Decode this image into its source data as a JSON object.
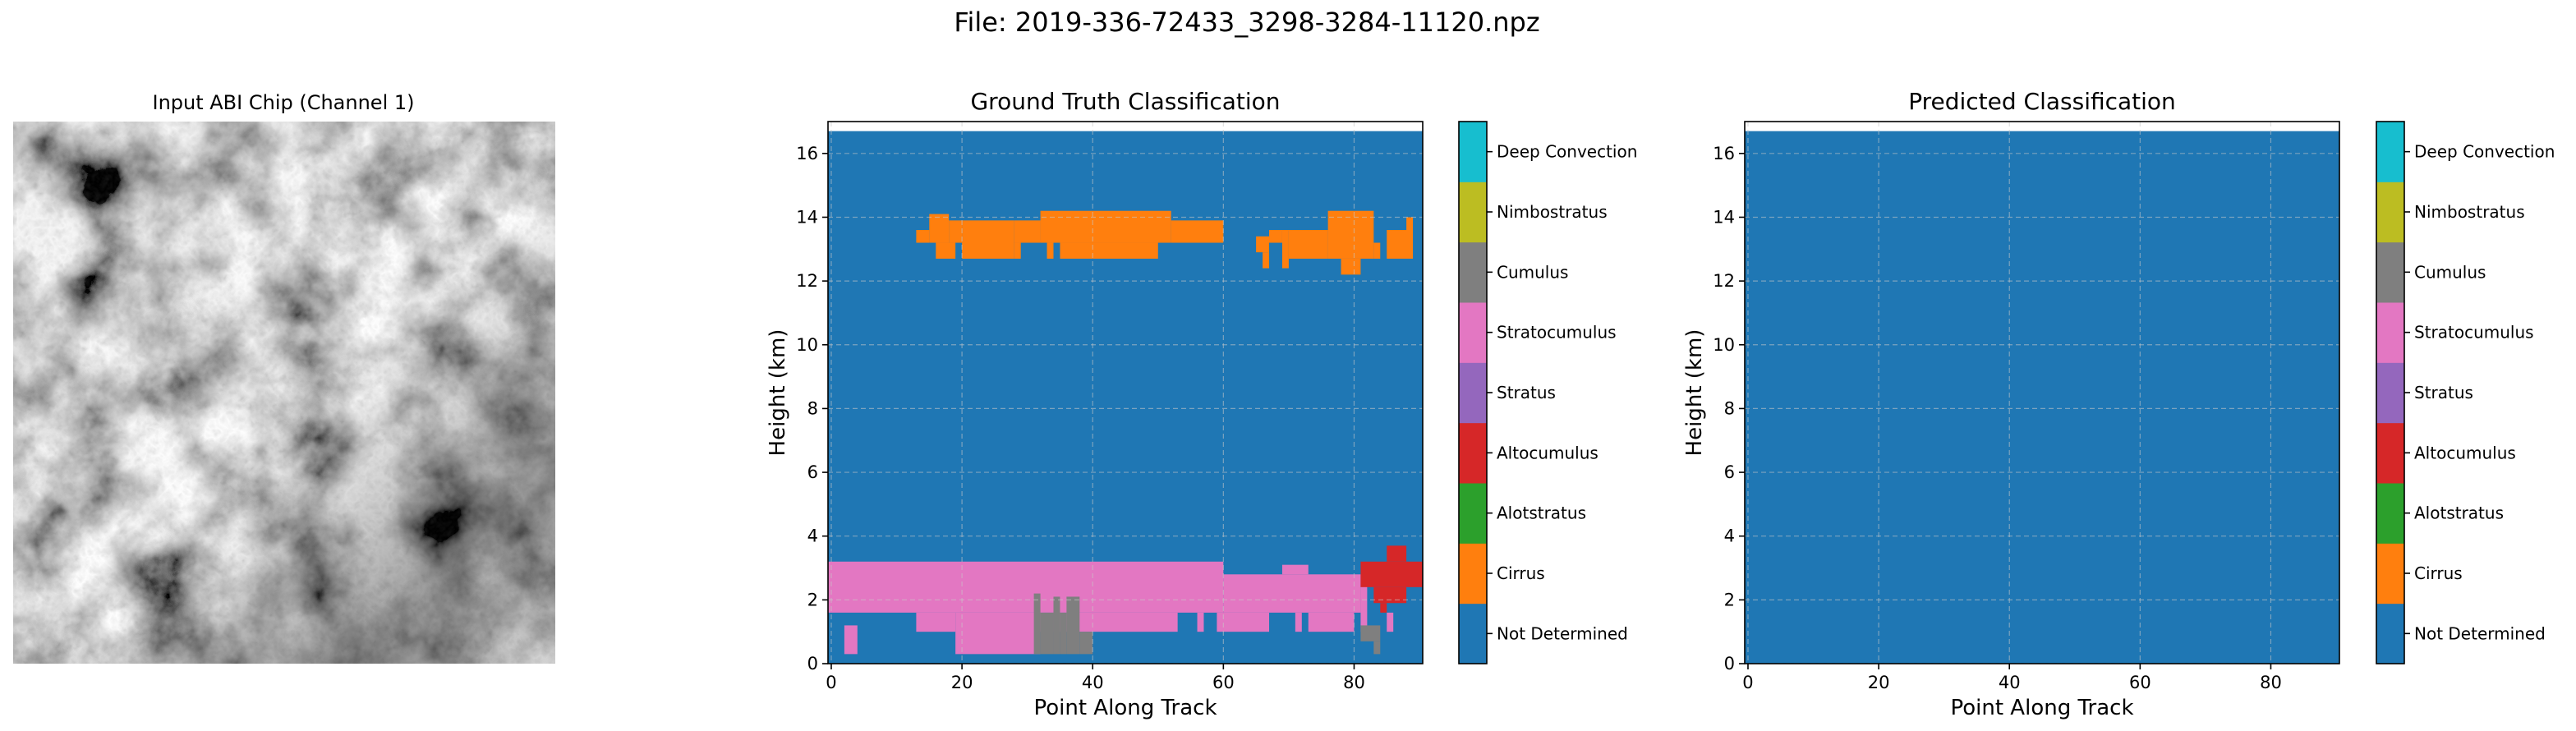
{
  "figure": {
    "suptitle": "File: 2019-336-72433_3298-3284-11120.npz"
  },
  "image_panel": {
    "title": "Input ABI Chip (Channel 1)"
  },
  "classes": [
    {
      "name": "Not Determined",
      "color": "#1f77b4"
    },
    {
      "name": "Cirrus",
      "color": "#ff7f0e"
    },
    {
      "name": "Alotstratus",
      "color": "#2ca02c"
    },
    {
      "name": "Altocumulus",
      "color": "#d62728"
    },
    {
      "name": "Stratus",
      "color": "#9467bd"
    },
    {
      "name": "Stratocumulus",
      "color": "#e377c2"
    },
    {
      "name": "Cumulus",
      "color": "#7f7f7f"
    },
    {
      "name": "Nimbostratus",
      "color": "#bcbd22"
    },
    {
      "name": "Deep Convection",
      "color": "#17becf"
    }
  ],
  "chart_data": [
    {
      "type": "heatmap",
      "title": "Ground Truth Classification",
      "xlabel": "Point Along Track",
      "ylabel": "Height (km)",
      "xlim": [
        -0.5,
        90.5
      ],
      "ylim": [
        0,
        17
      ],
      "xticks": [
        0,
        20,
        40,
        60,
        80
      ],
      "yticks": [
        0,
        2,
        4,
        6,
        8,
        10,
        12,
        14,
        16
      ],
      "grid": true,
      "background_class": "Not Determined",
      "data_top_km": 16.7,
      "regions": [
        {
          "cls": "Cirrus",
          "x0": 13,
          "x1": 15,
          "y0": 13.2,
          "y1": 13.6
        },
        {
          "cls": "Cirrus",
          "x0": 15,
          "x1": 18,
          "y0": 13.2,
          "y1": 14.1
        },
        {
          "cls": "Cirrus",
          "x0": 16,
          "x1": 19,
          "y0": 12.7,
          "y1": 13.2
        },
        {
          "cls": "Cirrus",
          "x0": 18,
          "x1": 20,
          "y0": 13.2,
          "y1": 13.9
        },
        {
          "cls": "Cirrus",
          "x0": 20,
          "x1": 28,
          "y0": 12.7,
          "y1": 13.9
        },
        {
          "cls": "Cirrus",
          "x0": 28,
          "x1": 32,
          "y0": 13.2,
          "y1": 13.9
        },
        {
          "cls": "Cirrus",
          "x0": 28,
          "x1": 29,
          "y0": 12.7,
          "y1": 13.2
        },
        {
          "cls": "Cirrus",
          "x0": 32,
          "x1": 52,
          "y0": 13.2,
          "y1": 14.2
        },
        {
          "cls": "Cirrus",
          "x0": 33,
          "x1": 34,
          "y0": 12.7,
          "y1": 13.2
        },
        {
          "cls": "Cirrus",
          "x0": 35,
          "x1": 50,
          "y0": 12.7,
          "y1": 13.2
        },
        {
          "cls": "Cirrus",
          "x0": 52,
          "x1": 60,
          "y0": 13.2,
          "y1": 13.9
        },
        {
          "cls": "Cirrus",
          "x0": 65,
          "x1": 67,
          "y0": 12.9,
          "y1": 13.4
        },
        {
          "cls": "Cirrus",
          "x0": 66,
          "x1": 67,
          "y0": 12.4,
          "y1": 12.9
        },
        {
          "cls": "Cirrus",
          "x0": 67,
          "x1": 69,
          "y0": 13.2,
          "y1": 13.6
        },
        {
          "cls": "Cirrus",
          "x0": 69,
          "x1": 70,
          "y0": 12.4,
          "y1": 13.6
        },
        {
          "cls": "Cirrus",
          "x0": 70,
          "x1": 76,
          "y0": 12.7,
          "y1": 13.6
        },
        {
          "cls": "Cirrus",
          "x0": 76,
          "x1": 83,
          "y0": 12.7,
          "y1": 14.2
        },
        {
          "cls": "Cirrus",
          "x0": 78,
          "x1": 81,
          "y0": 12.2,
          "y1": 12.7
        },
        {
          "cls": "Cirrus",
          "x0": 83,
          "x1": 84,
          "y0": 12.7,
          "y1": 13.2
        },
        {
          "cls": "Cirrus",
          "x0": 85,
          "x1": 89,
          "y0": 12.7,
          "y1": 13.6
        },
        {
          "cls": "Cirrus",
          "x0": 88,
          "x1": 89,
          "y0": 13.6,
          "y1": 14.0
        },
        {
          "cls": "Stratocumulus",
          "x0": -0.5,
          "x1": 60,
          "y0": 1.6,
          "y1": 3.2
        },
        {
          "cls": "Stratocumulus",
          "x0": 60,
          "x1": 81,
          "y0": 1.6,
          "y1": 2.8
        },
        {
          "cls": "Stratocumulus",
          "x0": 69,
          "x1": 73,
          "y0": 2.8,
          "y1": 3.1
        },
        {
          "cls": "Stratocumulus",
          "x0": 13,
          "x1": 19,
          "y0": 1.0,
          "y1": 1.6
        },
        {
          "cls": "Stratocumulus",
          "x0": 19,
          "x1": 32,
          "y0": 0.3,
          "y1": 1.6
        },
        {
          "cls": "Stratocumulus",
          "x0": 32,
          "x1": 53,
          "y0": 1.0,
          "y1": 1.6
        },
        {
          "cls": "Stratocumulus",
          "x0": 56,
          "x1": 57,
          "y0": 1.0,
          "y1": 1.6
        },
        {
          "cls": "Stratocumulus",
          "x0": 59,
          "x1": 67,
          "y0": 1.0,
          "y1": 1.6
        },
        {
          "cls": "Stratocumulus",
          "x0": 71,
          "x1": 72,
          "y0": 1.0,
          "y1": 1.6
        },
        {
          "cls": "Stratocumulus",
          "x0": 73,
          "x1": 80,
          "y0": 1.0,
          "y1": 1.6
        },
        {
          "cls": "Stratocumulus",
          "x0": 2,
          "x1": 4,
          "y0": 0.3,
          "y1": 1.2
        },
        {
          "cls": "Stratocumulus",
          "x0": 81,
          "x1": 82,
          "y0": 1.0,
          "y1": 2.8
        },
        {
          "cls": "Stratocumulus",
          "x0": 85,
          "x1": 86,
          "y0": 1.0,
          "y1": 1.6
        },
        {
          "cls": "Cumulus",
          "x0": 31,
          "x1": 32,
          "y0": 0.3,
          "y1": 2.2
        },
        {
          "cls": "Cumulus",
          "x0": 32,
          "x1": 34,
          "y0": 0.3,
          "y1": 1.6
        },
        {
          "cls": "Cumulus",
          "x0": 34,
          "x1": 35,
          "y0": 0.3,
          "y1": 2.1
        },
        {
          "cls": "Cumulus",
          "x0": 35,
          "x1": 36,
          "y0": 0.3,
          "y1": 1.6
        },
        {
          "cls": "Cumulus",
          "x0": 36,
          "x1": 38,
          "y0": 0.3,
          "y1": 2.1
        },
        {
          "cls": "Cumulus",
          "x0": 38,
          "x1": 40,
          "y0": 0.3,
          "y1": 1.0
        },
        {
          "cls": "Cumulus",
          "x0": 81,
          "x1": 84,
          "y0": 0.7,
          "y1": 1.2
        },
        {
          "cls": "Cumulus",
          "x0": 83,
          "x1": 84,
          "y0": 0.3,
          "y1": 0.7
        },
        {
          "cls": "Altocumulus",
          "x0": 81,
          "x1": 90.5,
          "y0": 2.4,
          "y1": 3.2
        },
        {
          "cls": "Altocumulus",
          "x0": 83,
          "x1": 88,
          "y0": 1.9,
          "y1": 2.4
        },
        {
          "cls": "Altocumulus",
          "x0": 85,
          "x1": 88,
          "y0": 3.2,
          "y1": 3.7
        },
        {
          "cls": "Altocumulus",
          "x0": 84,
          "x1": 85,
          "y0": 1.6,
          "y1": 1.9
        }
      ]
    },
    {
      "type": "heatmap",
      "title": "Predicted Classification",
      "xlabel": "Point Along Track",
      "ylabel": "Height (km)",
      "xlim": [
        -0.5,
        90.5
      ],
      "ylim": [
        0,
        17
      ],
      "xticks": [
        0,
        20,
        40,
        60,
        80
      ],
      "yticks": [
        0,
        2,
        4,
        6,
        8,
        10,
        12,
        14,
        16
      ],
      "grid": true,
      "background_class": "Not Determined",
      "data_top_km": 16.7,
      "regions": []
    }
  ]
}
